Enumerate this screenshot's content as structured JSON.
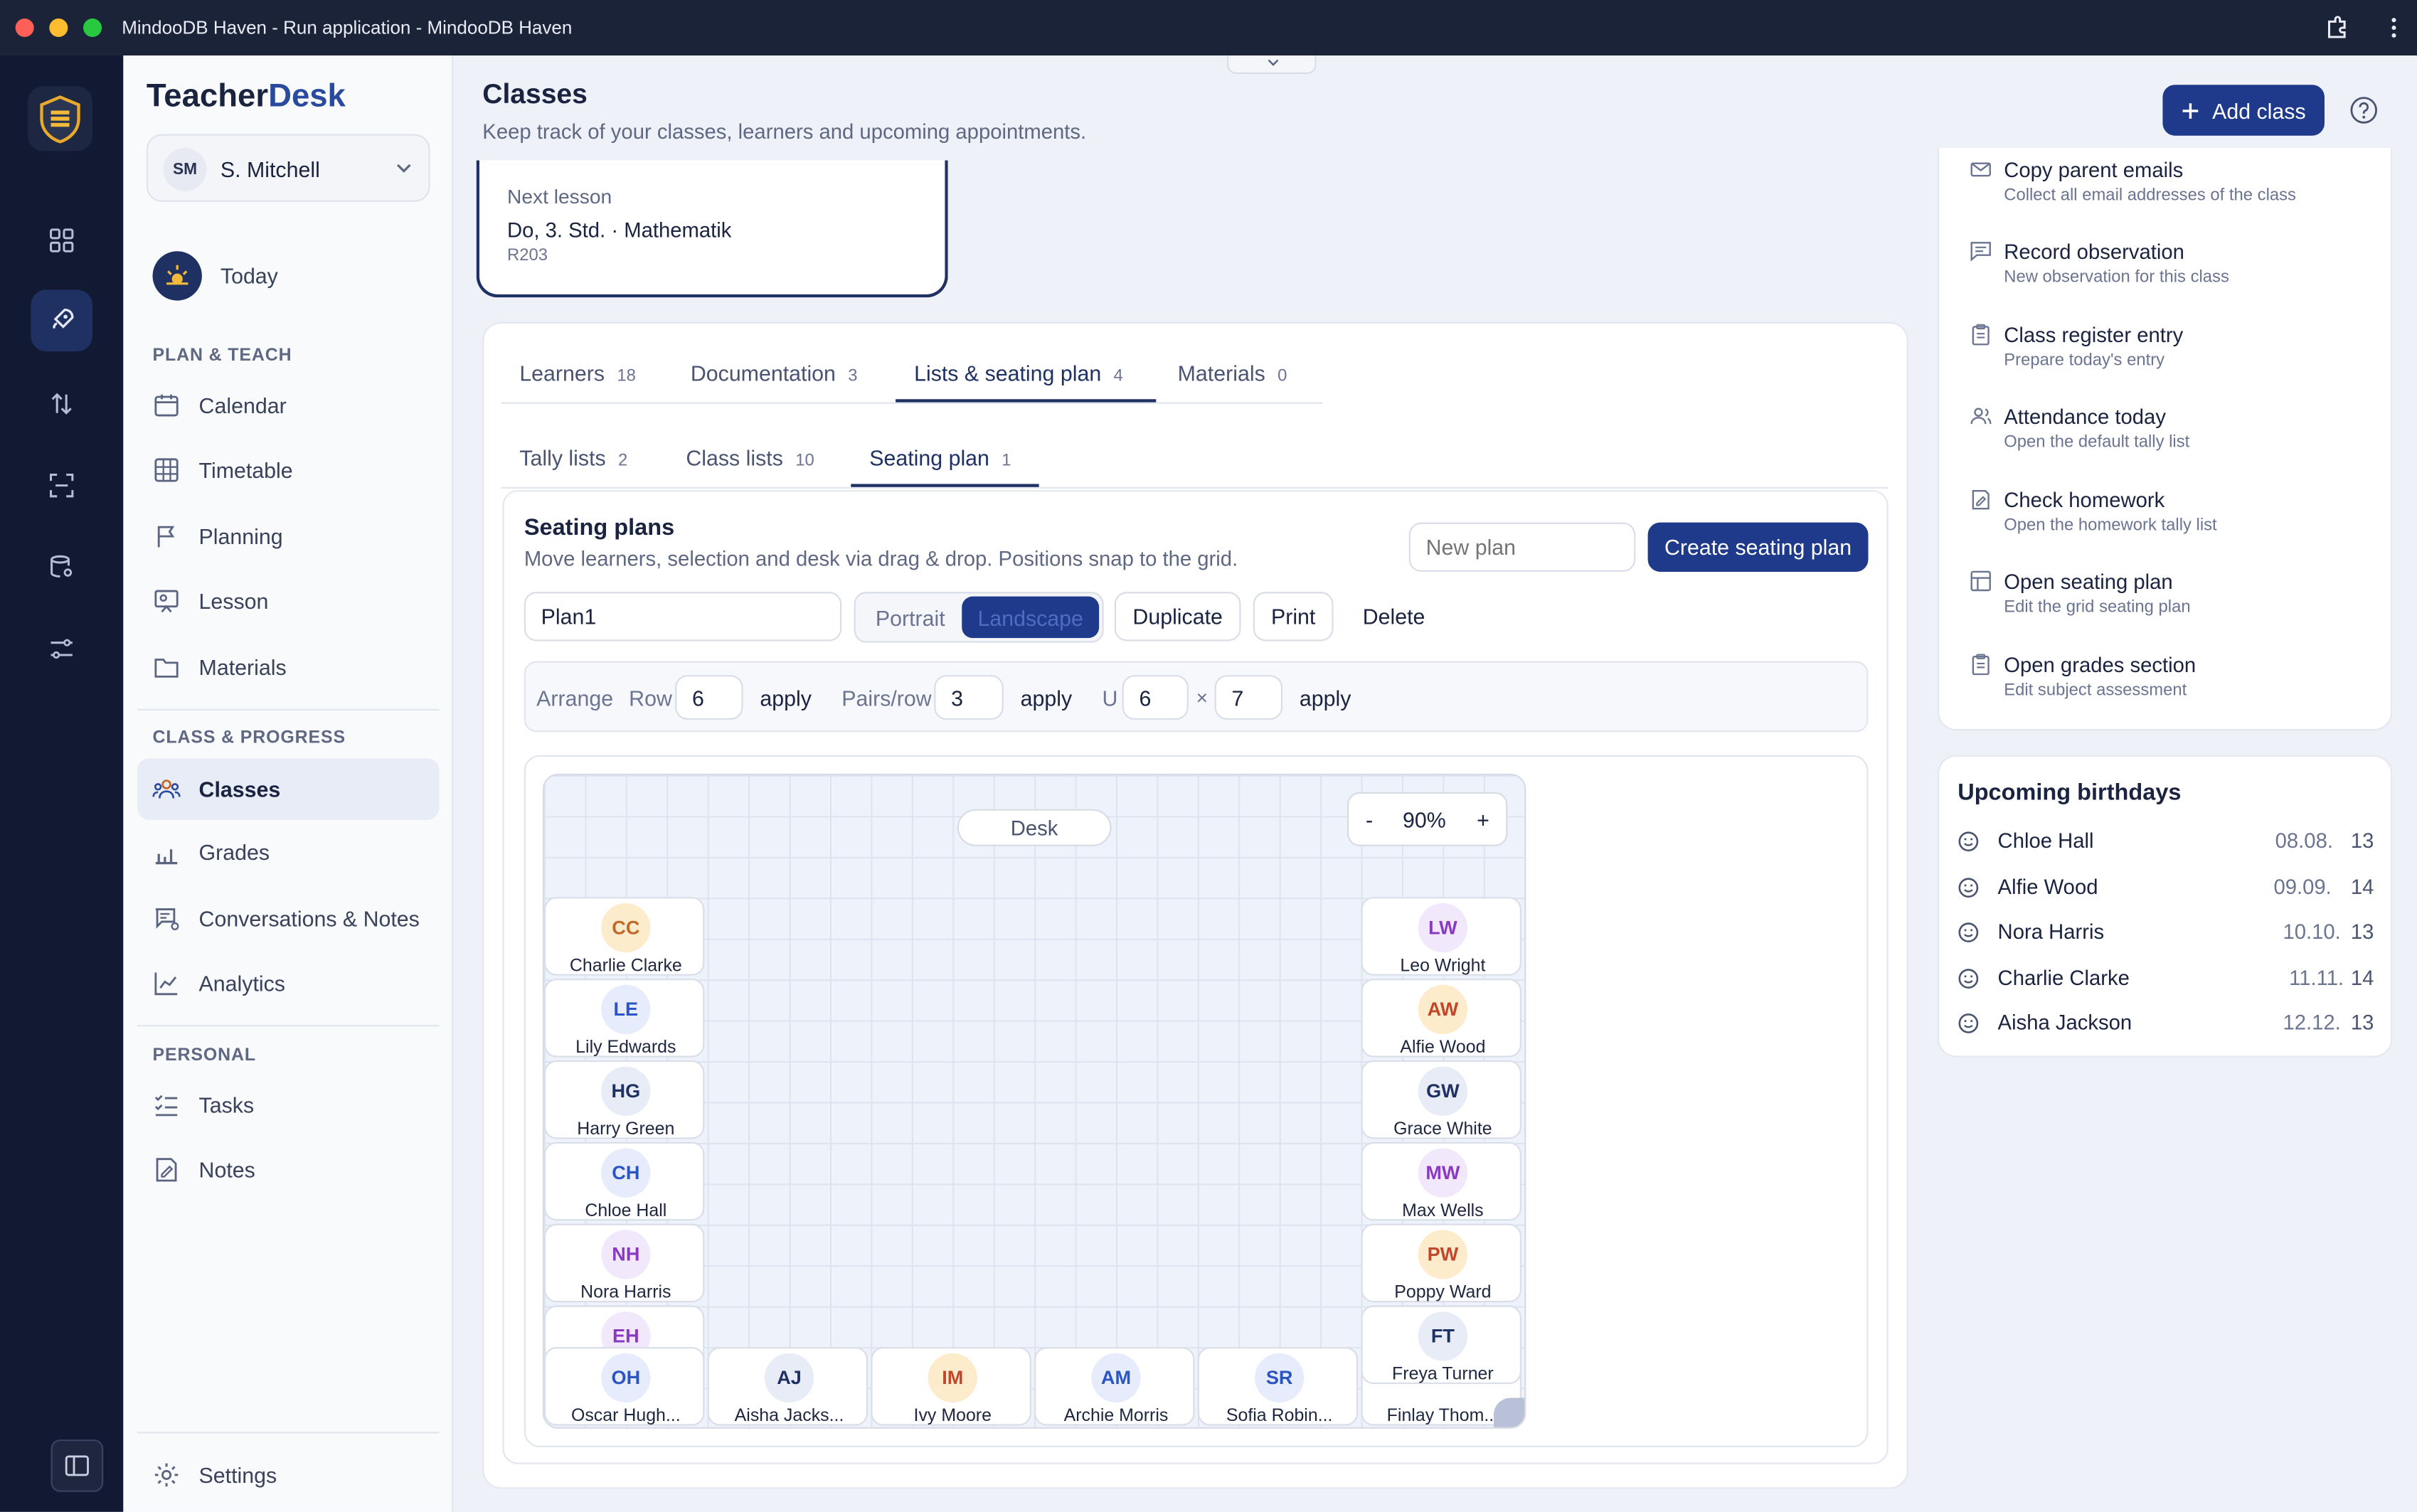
{
  "window": {
    "title": "MindooDB Haven - Run application - MindooDB Haven"
  },
  "brand": {
    "name_part1": "Teacher",
    "name_part2": "Desk"
  },
  "user": {
    "initials": "SM",
    "name": "S. Mitchell"
  },
  "today": {
    "label": "Today"
  },
  "sections": {
    "plan": "PLAN & TEACH",
    "class": "CLASS & PROGRESS",
    "personal": "PERSONAL"
  },
  "nav": {
    "calendar": "Calendar",
    "timetable": "Timetable",
    "planning": "Planning",
    "lesson": "Lesson",
    "materials": "Materials",
    "classes": "Classes",
    "grades": "Grades",
    "conversations": "Conversations & Notes",
    "analytics": "Analytics",
    "tasks": "Tasks",
    "notes": "Notes",
    "settings": "Settings"
  },
  "header": {
    "title": "Classes",
    "subtitle": "Keep track of your classes, learners and upcoming appointments.",
    "add_label": "Add class"
  },
  "next_lesson": {
    "label": "Next lesson",
    "value": "Do, 3. Std. · Mathematik",
    "room": "R203"
  },
  "tabs": [
    {
      "label": "Learners",
      "count": "18"
    },
    {
      "label": "Documentation",
      "count": "3"
    },
    {
      "label": "Lists & seating plan",
      "count": "4"
    },
    {
      "label": "Materials",
      "count": "0"
    }
  ],
  "subtabs": [
    {
      "label": "Tally lists",
      "count": "2"
    },
    {
      "label": "Class lists",
      "count": "10"
    },
    {
      "label": "Seating plan",
      "count": "1"
    }
  ],
  "seating": {
    "title": "Seating plans",
    "subtitle": "Move learners, selection and desk via drag & drop. Positions snap to the grid.",
    "new_plan_placeholder": "New plan",
    "create_label": "Create seating plan",
    "plan_name": "Plan1",
    "portrait": "Portrait",
    "landscape": "Landscape",
    "duplicate": "Duplicate",
    "print": "Print",
    "delete": "Delete",
    "arrange": {
      "label": "Arrange",
      "row_label": "Row",
      "row_value": "6",
      "apply": "apply",
      "pairs_label": "Pairs/row",
      "pairs_value": "3",
      "u_label": "U",
      "u_w": "6",
      "times": "×",
      "u_h": "7"
    },
    "desk": "Desk",
    "zoom": {
      "minus": "-",
      "value": "90%",
      "plus": "+"
    }
  },
  "students": {
    "cc": {
      "initials": "CC",
      "name": "Charlie Clarke"
    },
    "le": {
      "initials": "LE",
      "name": "Lily Edwards"
    },
    "hg": {
      "initials": "HG",
      "name": "Harry Green"
    },
    "ch": {
      "initials": "CH",
      "name": "Chloe Hall"
    },
    "nh": {
      "initials": "NH",
      "name": "Nora Harris"
    },
    "eh": {
      "initials": "EH",
      "name": ""
    },
    "oh": {
      "initials": "OH",
      "name": "Oscar Hugh..."
    },
    "aj": {
      "initials": "AJ",
      "name": "Aisha Jacks..."
    },
    "im": {
      "initials": "IM",
      "name": "Ivy Moore"
    },
    "am": {
      "initials": "AM",
      "name": "Archie Morris"
    },
    "sr": {
      "initials": "SR",
      "name": "Sofia Robin..."
    },
    "lw": {
      "initials": "LW",
      "name": "Leo Wright"
    },
    "aw": {
      "initials": "AW",
      "name": "Alfie Wood"
    },
    "gw": {
      "initials": "GW",
      "name": "Grace White"
    },
    "mw": {
      "initials": "MW",
      "name": "Max Wells"
    },
    "pw": {
      "initials": "PW",
      "name": "Poppy Ward"
    },
    "ft": {
      "initials": "FT",
      "name": "Freya Turner"
    },
    "fth": {
      "name": "Finlay Thom..."
    }
  },
  "quick_actions": [
    {
      "title": "Copy parent emails",
      "sub": "Collect all email addresses of the class"
    },
    {
      "title": "Record observation",
      "sub": "New observation for this class"
    },
    {
      "title": "Class register entry",
      "sub": "Prepare today's entry"
    },
    {
      "title": "Attendance today",
      "sub": "Open the default tally list"
    },
    {
      "title": "Check homework",
      "sub": "Open the homework tally list"
    },
    {
      "title": "Open seating plan",
      "sub": "Edit the grid seating plan"
    },
    {
      "title": "Open grades section",
      "sub": "Edit subject assessment"
    }
  ],
  "birthdays": {
    "title": "Upcoming birthdays",
    "items": [
      {
        "name": "Chloe Hall",
        "date": "08.08.",
        "age": "13"
      },
      {
        "name": "Alfie Wood",
        "date": "09.09.",
        "age": "14"
      },
      {
        "name": "Nora Harris",
        "date": "10.10.",
        "age": "13"
      },
      {
        "name": "Charlie Clarke",
        "date": "11.11.",
        "age": "14"
      },
      {
        "name": "Aisha Jackson",
        "date": "12.12.",
        "age": "13"
      }
    ]
  }
}
